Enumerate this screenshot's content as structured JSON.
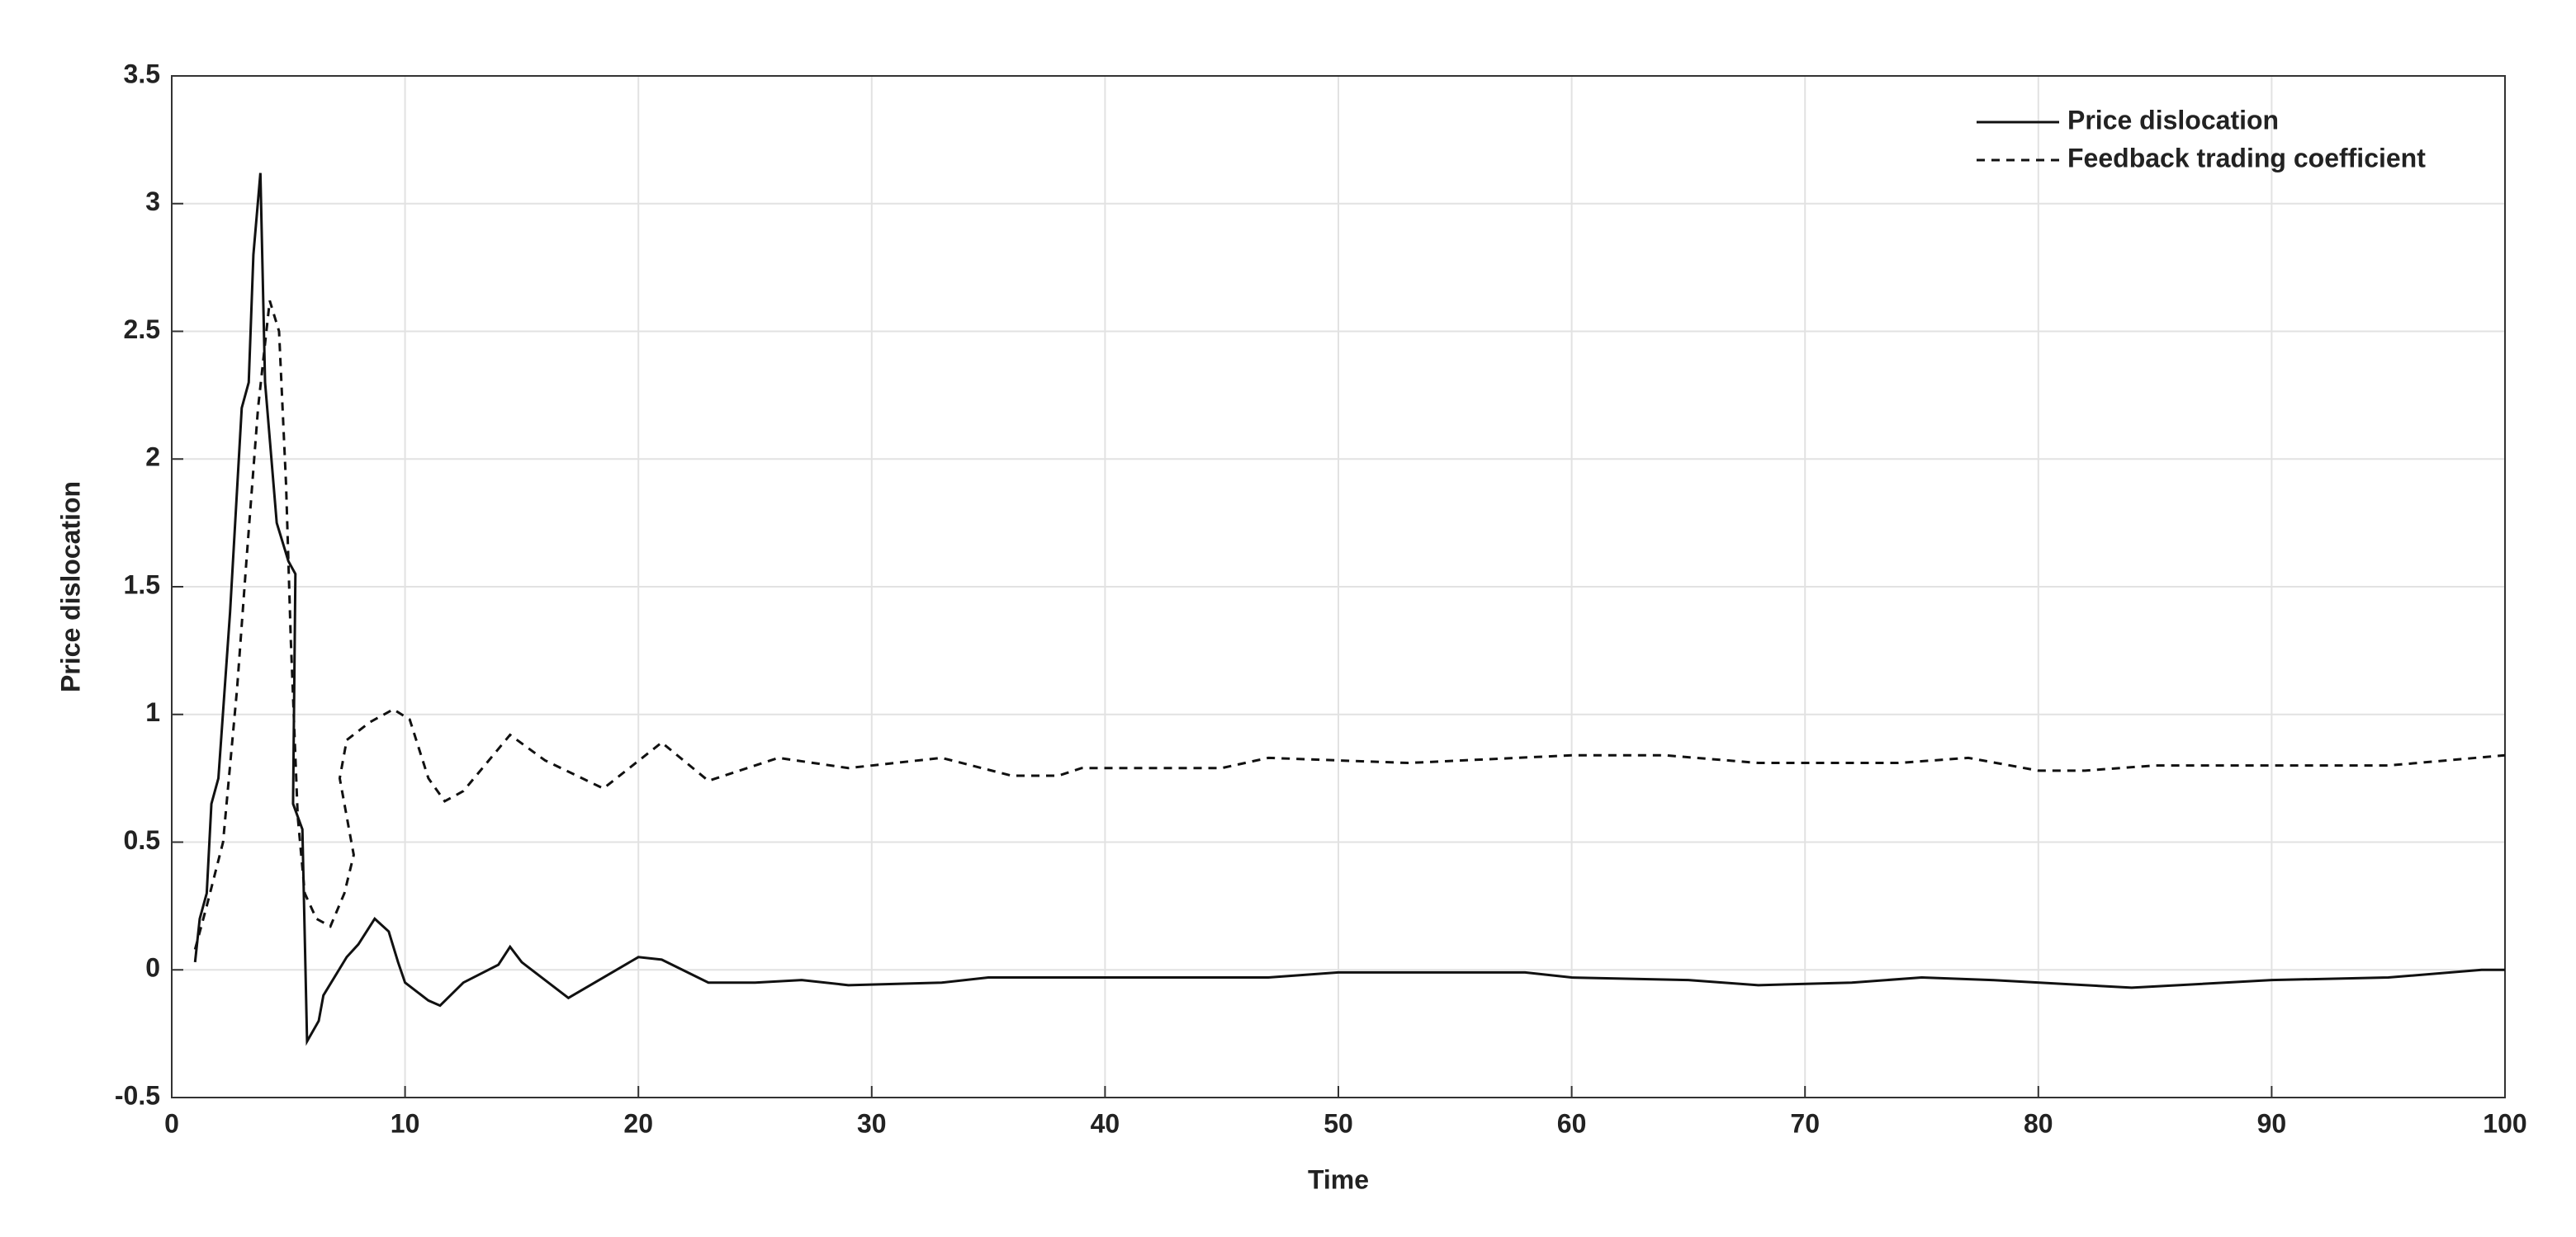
{
  "chart_data": {
    "type": "line",
    "x_label": "Time",
    "y_label": "Price dislocation",
    "xlim": [
      0,
      100
    ],
    "xticks": [
      0,
      10,
      20,
      30,
      40,
      50,
      60,
      70,
      80,
      90,
      100
    ],
    "ylim": [
      -0.5,
      3.5
    ],
    "yticks": [
      -0.5,
      0,
      0.5,
      1,
      1.5,
      2,
      2.5,
      3,
      3.5
    ],
    "grid": true,
    "legend": "upper right",
    "series": [
      {
        "name": "Price dislocation",
        "color": "#111111",
        "dash": "solid",
        "x": [
          1,
          1.2,
          1.5,
          1.7,
          2,
          2.5,
          3,
          3.3,
          3.5,
          3.8,
          4,
          4.5,
          5,
          5.3,
          5.2,
          5.6,
          5.8,
          6.3,
          6.5,
          7.5,
          8,
          8.7,
          9.3,
          9.7,
          10,
          11,
          11.5,
          12.5,
          14,
          14.5,
          15,
          17,
          18.5,
          20,
          21,
          23,
          25,
          27,
          29,
          33,
          35,
          47,
          50,
          58,
          60,
          65,
          68,
          72,
          75,
          78,
          84,
          90,
          95,
          99,
          100
        ],
        "values": [
          0.03,
          0.2,
          0.3,
          0.65,
          0.75,
          1.4,
          2.2,
          2.3,
          2.8,
          3.12,
          2.3,
          1.75,
          1.6,
          1.55,
          0.65,
          0.55,
          -0.28,
          -0.2,
          -0.1,
          0.05,
          0.1,
          0.2,
          0.15,
          0.03,
          -0.05,
          -0.12,
          -0.14,
          -0.05,
          0.02,
          0.09,
          0.03,
          -0.11,
          -0.03,
          0.05,
          0.04,
          -0.05,
          -0.05,
          -0.04,
          -0.06,
          -0.05,
          -0.03,
          -0.03,
          -0.01,
          -0.01,
          -0.03,
          -0.04,
          -0.06,
          -0.05,
          -0.03,
          -0.04,
          -0.07,
          -0.04,
          -0.03,
          0,
          0
        ]
      },
      {
        "name": "Feedback trading coefficient",
        "color": "#111111",
        "dash": "dashed",
        "x": [
          1,
          1.5,
          2.2,
          2.8,
          3.2,
          3.7,
          4.2,
          4.6,
          4.9,
          5.1,
          5.4,
          5.7,
          6.2,
          6.8,
          7.4,
          7.8,
          7.2,
          7.5,
          8.5,
          9.5,
          10.2,
          11,
          11.7,
          12.5,
          14.5,
          16,
          18.5,
          21,
          23,
          26,
          29,
          33,
          36,
          38,
          39,
          45,
          47,
          53,
          60,
          64,
          68,
          74,
          77,
          80,
          82,
          85,
          95,
          100
        ],
        "values": [
          0.08,
          0.25,
          0.5,
          1.1,
          1.6,
          2.2,
          2.62,
          2.5,
          1.9,
          1.3,
          0.6,
          0.3,
          0.2,
          0.17,
          0.3,
          0.45,
          0.75,
          0.9,
          0.97,
          1.02,
          0.98,
          0.75,
          0.66,
          0.7,
          0.92,
          0.82,
          0.71,
          0.89,
          0.74,
          0.83,
          0.79,
          0.83,
          0.76,
          0.76,
          0.79,
          0.79,
          0.83,
          0.81,
          0.84,
          0.84,
          0.81,
          0.81,
          0.83,
          0.78,
          0.78,
          0.8,
          0.8,
          0.84
        ]
      }
    ]
  }
}
